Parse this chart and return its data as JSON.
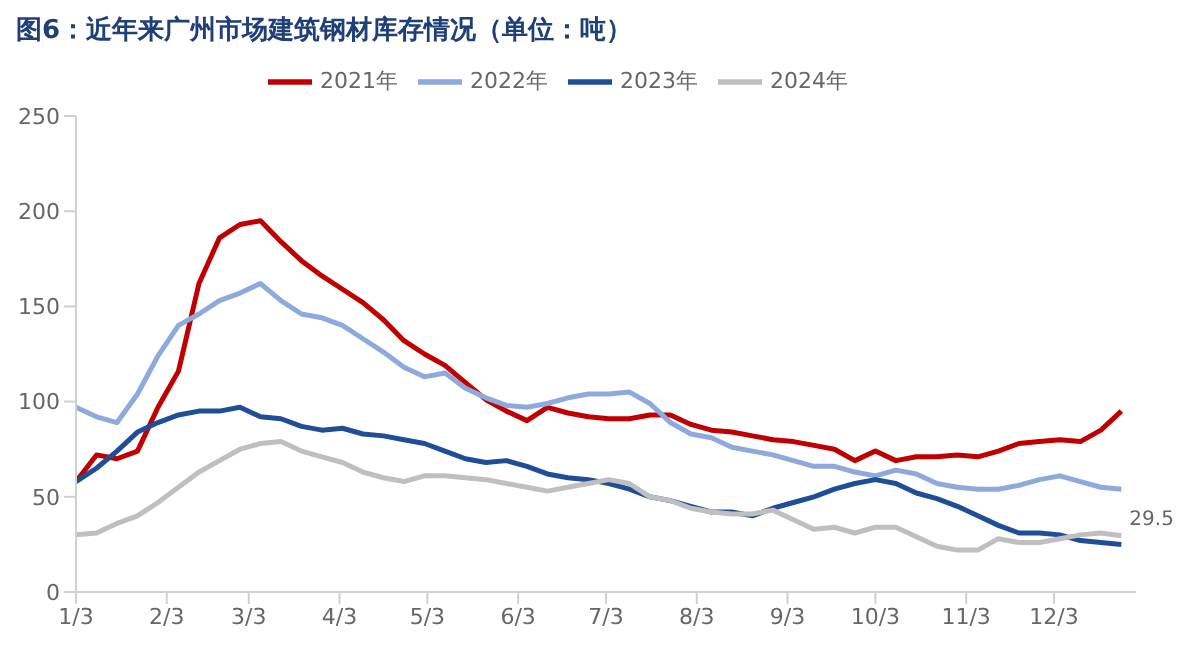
{
  "chart_data": {
    "type": "line",
    "title": "图6：近年来广州市场建筑钢材库存情况（单位：吨）",
    "x": [
      "--01-03",
      "--01-10",
      "--01-17",
      "--01-24",
      "--01-31",
      "--02-07",
      "--02-14",
      "--02-21",
      "--02-28",
      "--03-07",
      "--03-14",
      "--03-21",
      "--03-28",
      "--04-04",
      "--04-11",
      "--04-18",
      "--04-25",
      "--05-02",
      "--05-09",
      "--05-16",
      "--05-23",
      "--05-30",
      "--06-06",
      "--06-13",
      "--06-20",
      "--06-27",
      "--07-04",
      "--07-11",
      "--07-18",
      "--07-25",
      "--08-01",
      "--08-08",
      "--08-15",
      "--08-22",
      "--08-29",
      "--09-05",
      "--09-12",
      "--09-19",
      "--09-26",
      "--10-03",
      "--10-10",
      "--10-17",
      "--10-24",
      "--10-31",
      "--11-07",
      "--11-14",
      "--11-21",
      "--11-28",
      "--12-05",
      "--12-12",
      "--12-19",
      "--12-26"
    ],
    "series": [
      {
        "name": "2021年",
        "color": "#c00000",
        "values": [
          58,
          72,
          70,
          74,
          97,
          116,
          162,
          186,
          193,
          195,
          184,
          174,
          166,
          159,
          152,
          143,
          132,
          125,
          119,
          110,
          101,
          95,
          90,
          97,
          94,
          92,
          91,
          91,
          93,
          93,
          88,
          85,
          84,
          82,
          80,
          79,
          77,
          75,
          69,
          74,
          69,
          71,
          71,
          72,
          71,
          74,
          78,
          79,
          80,
          79,
          85,
          95
        ]
      },
      {
        "name": "2022年",
        "color": "#8ea9db",
        "values": [
          97,
          92,
          89,
          104,
          124,
          140,
          146,
          153,
          157,
          162,
          153,
          146,
          144,
          140,
          133,
          126,
          118,
          113,
          115,
          107,
          102,
          98,
          97,
          99,
          102,
          104,
          104,
          105,
          99,
          89,
          83,
          81,
          76,
          74,
          72,
          69,
          66,
          66,
          63,
          61,
          64,
          62,
          57,
          55,
          54,
          54,
          56,
          59,
          61,
          58,
          55,
          54
        ]
      },
      {
        "name": "2023年",
        "color": "#1f4e97",
        "values": [
          58,
          65,
          74,
          84,
          89,
          93,
          95,
          95,
          97,
          92,
          91,
          87,
          85,
          86,
          83,
          82,
          80,
          78,
          74,
          70,
          68,
          69,
          66,
          62,
          60,
          59,
          57,
          54,
          50,
          48,
          45,
          42,
          42,
          40,
          44,
          47,
          50,
          54,
          57,
          59,
          57,
          52,
          49,
          45,
          40,
          35,
          31,
          31,
          30,
          27,
          26,
          25
        ]
      },
      {
        "name": "2024年",
        "color": "#bfbfbf",
        "values": [
          30,
          31,
          36,
          40,
          47,
          55,
          63,
          69,
          75,
          78,
          79,
          74,
          71,
          68,
          63,
          60,
          58,
          61,
          61,
          60,
          59,
          57,
          55,
          53,
          55,
          57,
          59,
          57,
          50,
          48,
          44,
          42,
          41,
          41,
          43,
          38,
          33,
          34,
          31,
          34,
          34,
          29,
          24,
          22,
          22,
          28,
          26,
          26,
          28,
          30,
          31,
          29.5
        ],
        "value_labels": [
          null,
          null,
          null,
          null,
          null,
          null,
          null,
          null,
          null,
          null,
          null,
          null,
          null,
          null,
          null,
          null,
          null,
          null,
          null,
          null,
          null,
          null,
          null,
          null,
          null,
          null,
          null,
          null,
          null,
          null,
          null,
          null,
          null,
          null,
          null,
          null,
          null,
          null,
          null,
          null,
          null,
          null,
          null,
          null,
          null,
          null,
          null,
          null,
          null,
          null,
          null,
          "29.5"
        ]
      }
    ],
    "xlim": [
      "--01-03",
      "--12-31"
    ],
    "xticks": [
      {
        "value": "--01-03",
        "label": "1/3"
      },
      {
        "value": "--02-03",
        "label": "2/3"
      },
      {
        "value": "--03-03",
        "label": "3/3"
      },
      {
        "value": "--04-03",
        "label": "4/3"
      },
      {
        "value": "--05-03",
        "label": "5/3"
      },
      {
        "value": "--06-03",
        "label": "6/3"
      },
      {
        "value": "--07-03",
        "label": "7/3"
      },
      {
        "value": "--08-03",
        "label": "8/3"
      },
      {
        "value": "--09-03",
        "label": "9/3"
      },
      {
        "value": "--10-03",
        "label": "10/3"
      },
      {
        "value": "--11-03",
        "label": "11/3"
      },
      {
        "value": "--12-03",
        "label": "12/3"
      }
    ],
    "ylim": [
      0,
      250
    ],
    "yticks": [
      0,
      50,
      100,
      150,
      200,
      250
    ],
    "grid": false,
    "legend": "top",
    "marker": "none",
    "line_style": "solid"
  }
}
